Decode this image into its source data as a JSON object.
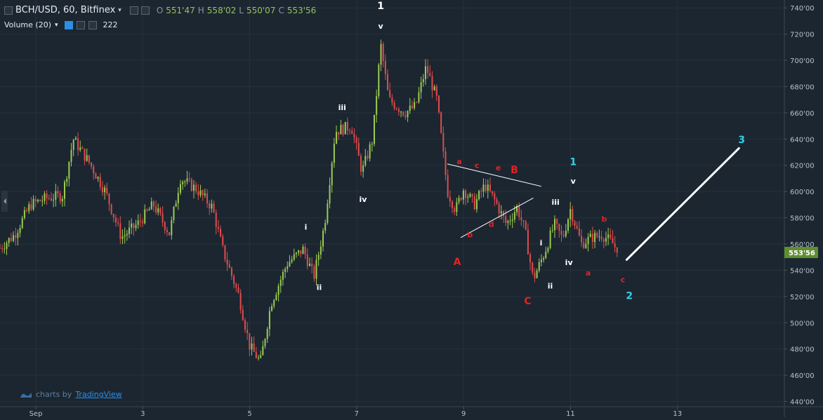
{
  "legend": {
    "symbol": "BCH/USD, 60, Bitfinex",
    "open_label": "O",
    "open": "551'47",
    "high_label": "H",
    "high": "558'02",
    "low_label": "L",
    "low": "550'07",
    "close_label": "C",
    "close": "553'56"
  },
  "volume": {
    "label": "Volume (20)",
    "value": "222"
  },
  "branding": {
    "text": "charts by",
    "brand": "TradingView"
  },
  "colors": {
    "background": "#1b2631",
    "up": "#9ccc52",
    "down": "#e04c4c",
    "price_tag": "#5f8f2f",
    "wave_white": "#ffffff",
    "wave_red": "#e02424",
    "wave_cyan": "#2ed3e6"
  },
  "chart_data": {
    "type": "candlestick",
    "x_ticks": [
      "Sep",
      "3",
      "5",
      "7",
      "9",
      "11",
      "13"
    ],
    "x_tick_positions_days": [
      1,
      3,
      5,
      7,
      9,
      11,
      13
    ],
    "x_range_days": [
      0.33,
      15.0
    ],
    "y_ticks": [
      "440'00",
      "460'00",
      "480'00",
      "500'00",
      "520'00",
      "540'00",
      "560'00",
      "580'00",
      "600'00",
      "620'00",
      "640'00",
      "660'00",
      "680'00",
      "700'00",
      "720'00",
      "740'00"
    ],
    "ylim": [
      436,
      746
    ],
    "last_price": "553'56",
    "last_price_value": 553.56,
    "price_path": [
      [
        0.33,
        557
      ],
      [
        0.6,
        567
      ],
      [
        0.9,
        590
      ],
      [
        1.2,
        595
      ],
      [
        1.5,
        597
      ],
      [
        1.7,
        640
      ],
      [
        2.0,
        622
      ],
      [
        2.3,
        600
      ],
      [
        2.6,
        565
      ],
      [
        2.9,
        575
      ],
      [
        3.2,
        590
      ],
      [
        3.5,
        568
      ],
      [
        3.7,
        610
      ],
      [
        4.0,
        602
      ],
      [
        4.3,
        588
      ],
      [
        4.5,
        555
      ],
      [
        4.8,
        520
      ],
      [
        5.0,
        482
      ],
      [
        5.2,
        470
      ],
      [
        5.4,
        515
      ],
      [
        5.7,
        545
      ],
      [
        6.0,
        556
      ],
      [
        6.2,
        535
      ],
      [
        6.4,
        575
      ],
      [
        6.6,
        646
      ],
      [
        6.9,
        650
      ],
      [
        7.1,
        615
      ],
      [
        7.3,
        640
      ],
      [
        7.45,
        712
      ],
      [
        7.6,
        670
      ],
      [
        7.9,
        660
      ],
      [
        8.1,
        665
      ],
      [
        8.3,
        695
      ],
      [
        8.5,
        670
      ],
      [
        8.7,
        600
      ],
      [
        8.85,
        586
      ],
      [
        9.0,
        602
      ],
      [
        9.2,
        590
      ],
      [
        9.4,
        605
      ],
      [
        9.6,
        592
      ],
      [
        9.8,
        575
      ],
      [
        10.0,
        588
      ],
      [
        10.15,
        570
      ],
      [
        10.3,
        533
      ],
      [
        10.5,
        552
      ],
      [
        10.7,
        575
      ],
      [
        10.85,
        564
      ],
      [
        11.0,
        587
      ],
      [
        11.2,
        560
      ],
      [
        11.4,
        565
      ],
      [
        11.6,
        567
      ],
      [
        11.8,
        560
      ],
      [
        11.9,
        553
      ]
    ],
    "volume_label": "Volume (20)",
    "wave_labels": [
      {
        "text": "1",
        "x": 7.45,
        "y": 739,
        "color": "white",
        "size": "large"
      },
      {
        "text": "v",
        "x": 7.45,
        "y": 724,
        "color": "white"
      },
      {
        "text": "iii",
        "x": 6.73,
        "y": 662,
        "color": "white"
      },
      {
        "text": "i",
        "x": 6.05,
        "y": 571,
        "color": "white"
      },
      {
        "text": "ii",
        "x": 6.3,
        "y": 525,
        "color": "white"
      },
      {
        "text": "iv",
        "x": 7.12,
        "y": 592,
        "color": "white"
      },
      {
        "text": "a",
        "x": 8.92,
        "y": 621,
        "color": "red"
      },
      {
        "text": "c",
        "x": 9.25,
        "y": 618,
        "color": "red"
      },
      {
        "text": "e",
        "x": 9.65,
        "y": 616,
        "color": "red"
      },
      {
        "text": "B",
        "x": 9.95,
        "y": 614,
        "color": "red",
        "size": "large"
      },
      {
        "text": "b",
        "x": 9.12,
        "y": 565,
        "color": "red"
      },
      {
        "text": "d",
        "x": 9.52,
        "y": 573,
        "color": "red"
      },
      {
        "text": "A",
        "x": 8.88,
        "y": 544,
        "color": "red",
        "size": "large"
      },
      {
        "text": "C",
        "x": 10.2,
        "y": 514,
        "color": "red",
        "size": "large"
      },
      {
        "text": "i",
        "x": 10.45,
        "y": 559,
        "color": "white"
      },
      {
        "text": "ii",
        "x": 10.62,
        "y": 526,
        "color": "white"
      },
      {
        "text": "iii",
        "x": 10.72,
        "y": 590,
        "color": "white"
      },
      {
        "text": "v",
        "x": 11.05,
        "y": 606,
        "color": "white"
      },
      {
        "text": "iv",
        "x": 10.97,
        "y": 544,
        "color": "white"
      },
      {
        "text": "1",
        "x": 11.05,
        "y": 620,
        "color": "cyan",
        "size": "large"
      },
      {
        "text": "b",
        "x": 11.63,
        "y": 577,
        "color": "red"
      },
      {
        "text": "a",
        "x": 11.33,
        "y": 536,
        "color": "red"
      },
      {
        "text": "c",
        "x": 11.98,
        "y": 531,
        "color": "red"
      },
      {
        "text": "2",
        "x": 12.1,
        "y": 518,
        "color": "cyan",
        "size": "large"
      },
      {
        "text": "3",
        "x": 14.2,
        "y": 637,
        "color": "cyan",
        "size": "large"
      }
    ],
    "trendlines": [
      {
        "from": [
          8.7,
          621
        ],
        "to": [
          10.45,
          604
        ],
        "color": "white",
        "width": 1
      },
      {
        "from": [
          8.95,
          565
        ],
        "to": [
          10.3,
          595
        ],
        "color": "white",
        "width": 1
      },
      {
        "from": [
          12.05,
          548
        ],
        "to": [
          14.15,
          633
        ],
        "color": "white",
        "width": 3
      }
    ]
  }
}
